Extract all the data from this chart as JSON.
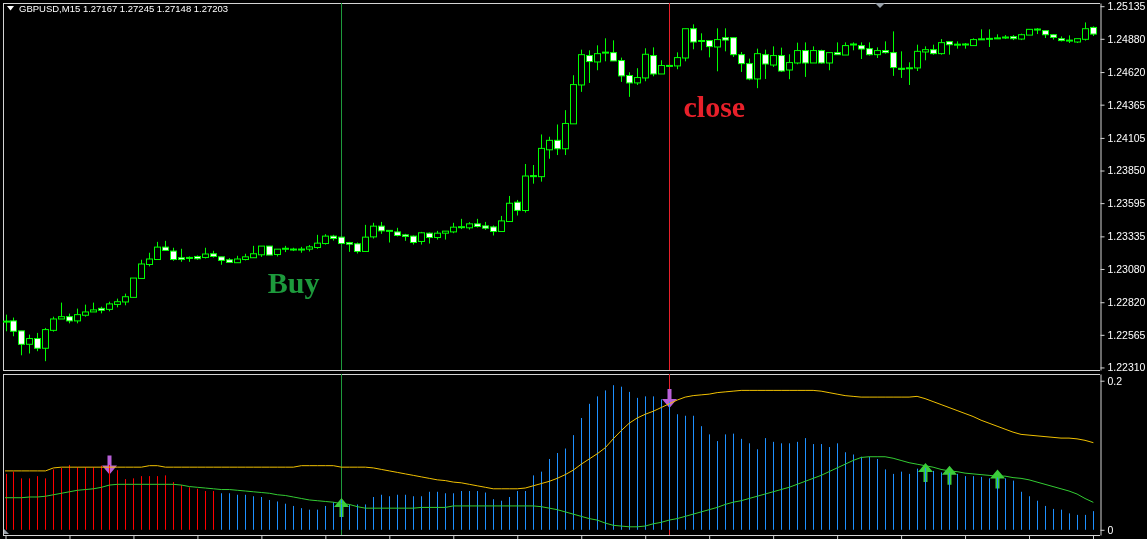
{
  "chart_data": [
    {
      "type": "candlestick",
      "title": "GBPUSD,M15 1.27167 1.27245 1.27148 1.27203",
      "tick_labels": "y",
      "annotations": [
        "Buy",
        "close"
      ],
      "categories": [
        null,
        null,
        null,
        null,
        null,
        null,
        null,
        null,
        null,
        null,
        null,
        null,
        null,
        null,
        null,
        null,
        null,
        null,
        null,
        null,
        null,
        null,
        null,
        null,
        null,
        null,
        null,
        null,
        null,
        null,
        null,
        null,
        null,
        null,
        null,
        null,
        null,
        null,
        null,
        null,
        null,
        null,
        null,
        null,
        null,
        null,
        null,
        null,
        null,
        null,
        null,
        null,
        null,
        null,
        null,
        null,
        null,
        null,
        null,
        null,
        null,
        null,
        null,
        null,
        null,
        null,
        null,
        null,
        null,
        null,
        null,
        null,
        null,
        null,
        null,
        null,
        null,
        null,
        null,
        null,
        null,
        null,
        null,
        null,
        null,
        null,
        null,
        null,
        null,
        null,
        null,
        null,
        null,
        null,
        null,
        null,
        null,
        null,
        null,
        null,
        null,
        null,
        null,
        null,
        null,
        null,
        null,
        null,
        null,
        null,
        null,
        null,
        null,
        null,
        null,
        null,
        null,
        null,
        null,
        null,
        null,
        null,
        null,
        null,
        null,
        null,
        null,
        null,
        null,
        null,
        null,
        null,
        null,
        null,
        null,
        null,
        null
      ],
      "ohlc": [
        [
          1.22665,
          1.22723,
          1.22593,
          1.22672
        ],
        [
          1.22674,
          1.227,
          1.22554,
          1.22593
        ],
        [
          1.22596,
          1.22596,
          1.22405,
          1.22491
        ],
        [
          1.22491,
          1.22567,
          1.22419,
          1.22536
        ],
        [
          1.22536,
          1.2258,
          1.22437,
          1.2246
        ],
        [
          1.2246,
          1.22619,
          1.22359,
          1.22606
        ],
        [
          1.226,
          1.22707,
          1.2259,
          1.22689
        ],
        [
          1.22689,
          1.22817,
          1.22689,
          1.22707
        ],
        [
          1.22707,
          1.22731,
          1.22655,
          1.22674
        ],
        [
          1.22674,
          1.2277,
          1.22655,
          1.22723
        ],
        [
          1.22718,
          1.22801,
          1.22707,
          1.22744
        ],
        [
          1.22744,
          1.22817,
          1.22744,
          1.2276
        ],
        [
          1.22772,
          1.22785,
          1.22733,
          1.22757
        ],
        [
          1.22764,
          1.22824,
          1.22749,
          1.22807
        ],
        [
          1.22803,
          1.22848,
          1.2278,
          1.22824
        ],
        [
          1.22822,
          1.22887,
          1.22796,
          1.22863
        ],
        [
          1.22858,
          1.23009,
          1.22858,
          1.23009
        ],
        [
          1.23006,
          1.23152,
          1.23006,
          1.23119
        ],
        [
          1.23115,
          1.23207,
          1.231,
          1.23158
        ],
        [
          1.23154,
          1.23292,
          1.23154,
          1.23251
        ],
        [
          1.23251,
          1.233,
          1.23225,
          1.23225
        ],
        [
          1.2322,
          1.23246,
          1.23144,
          1.23154
        ],
        [
          1.23168,
          1.23238,
          1.23136,
          1.23154
        ],
        [
          1.23168,
          1.23178,
          1.23136,
          1.23165
        ],
        [
          1.23178,
          1.23186,
          1.23152,
          1.2316
        ],
        [
          1.2317,
          1.23246,
          1.23162,
          1.23197
        ],
        [
          1.23199,
          1.23222,
          1.2317,
          1.23178
        ],
        [
          1.23175,
          1.23175,
          1.23113,
          1.23147
        ],
        [
          1.23152,
          1.23165,
          1.23131,
          1.23131
        ],
        [
          1.23129,
          1.23183,
          1.23129,
          1.23158
        ],
        [
          1.23154,
          1.23199,
          1.23147,
          1.23175
        ],
        [
          1.23168,
          1.23261,
          1.23168,
          1.23199
        ],
        [
          1.23191,
          1.23259,
          1.23175,
          1.23259
        ],
        [
          1.23259,
          1.23259,
          1.23189,
          1.23189
        ],
        [
          1.23193,
          1.23235,
          1.23178,
          1.23235
        ],
        [
          1.23238,
          1.23261,
          1.23212,
          1.23238
        ],
        [
          1.23232,
          1.23246,
          1.2322,
          1.23232
        ],
        [
          1.23232,
          1.23253,
          1.23207,
          1.23232
        ],
        [
          1.23235,
          1.23267,
          1.23217,
          1.23253
        ],
        [
          1.23248,
          1.23347,
          1.23238,
          1.23282
        ],
        [
          1.23279,
          1.23352,
          1.23271,
          1.23337
        ],
        [
          1.23337,
          1.23347,
          1.23302,
          1.23318
        ],
        [
          1.23329,
          1.23329,
          1.23279,
          1.23279
        ],
        [
          1.23287,
          1.23292,
          1.23214,
          1.23274
        ],
        [
          1.23277,
          1.23287,
          1.23201,
          1.23217
        ],
        [
          1.23217,
          1.23425,
          1.23217,
          1.23329
        ],
        [
          1.23331,
          1.23441,
          1.23318,
          1.23415
        ],
        [
          1.23415,
          1.23448,
          1.23355,
          1.23378
        ],
        [
          1.23378,
          1.23384,
          1.23287,
          1.23378
        ],
        [
          1.2337,
          1.23402,
          1.23334,
          1.23342
        ],
        [
          1.23347,
          1.23355,
          1.233,
          1.23334
        ],
        [
          1.23337,
          1.23342,
          1.23271,
          1.23287
        ],
        [
          1.23295,
          1.2337,
          1.23271,
          1.23363
        ],
        [
          1.2336,
          1.23365,
          1.23279,
          1.23326
        ],
        [
          1.23326,
          1.23378,
          1.2331,
          1.2336
        ],
        [
          1.2336,
          1.23376,
          1.2331,
          1.23376
        ],
        [
          1.2337,
          1.23441,
          1.2336,
          1.23407
        ],
        [
          1.23407,
          1.23472,
          1.23392,
          1.23407
        ],
        [
          1.23402,
          1.23446,
          1.23388,
          1.23433
        ],
        [
          1.23433,
          1.23472,
          1.23404,
          1.23412
        ],
        [
          1.23417,
          1.23448,
          1.23386,
          1.23399
        ],
        [
          1.23409,
          1.2342,
          1.23342,
          1.23373
        ],
        [
          1.23373,
          1.23495,
          1.23373,
          1.23456
        ],
        [
          1.23451,
          1.23651,
          1.23451,
          1.23594
        ],
        [
          1.23602,
          1.2362,
          1.23498,
          1.23538
        ],
        [
          1.23537,
          1.23901,
          1.23521,
          1.23807
        ],
        [
          1.23807,
          1.23893,
          1.23747,
          1.23805
        ],
        [
          1.23802,
          1.24132,
          1.23763,
          1.24023
        ],
        [
          1.24012,
          1.24114,
          1.23942,
          1.24086
        ],
        [
          1.24086,
          1.2421,
          1.23971,
          1.2402
        ],
        [
          1.2402,
          1.24322,
          1.23971,
          1.24218
        ],
        [
          1.24215,
          1.24595,
          1.24215,
          1.24522
        ],
        [
          1.24519,
          1.24795,
          1.24465,
          1.24756
        ],
        [
          1.24749,
          1.2479,
          1.24535,
          1.24702
        ],
        [
          1.24699,
          1.24829,
          1.24634,
          1.24764
        ],
        [
          1.24772,
          1.24884,
          1.24704,
          1.24772
        ],
        [
          1.24772,
          1.24868,
          1.24707,
          1.24707
        ],
        [
          1.2471,
          1.24733,
          1.24543,
          1.2459
        ],
        [
          1.24593,
          1.24618,
          1.24426,
          1.24535
        ],
        [
          1.24535,
          1.2465,
          1.24519,
          1.24577
        ],
        [
          1.24574,
          1.24806,
          1.24548,
          1.24759
        ],
        [
          1.24749,
          1.24813,
          1.24587,
          1.24605
        ],
        [
          1.24605,
          1.24712,
          1.24605,
          1.24671
        ],
        [
          1.24668,
          1.24675,
          1.2466,
          1.24668
        ],
        [
          1.24668,
          1.24774,
          1.24642,
          1.24733
        ],
        [
          1.2473,
          1.24959,
          1.24704,
          1.24959
        ],
        [
          1.24959,
          1.24993,
          1.24798,
          1.24855
        ],
        [
          1.24863,
          1.24923,
          1.2479,
          1.24863
        ],
        [
          1.24866,
          1.24866,
          1.24735,
          1.24819
        ],
        [
          1.24816,
          1.24962,
          1.24626,
          1.24874
        ],
        [
          1.24889,
          1.24962,
          1.24782,
          1.2487
        ],
        [
          1.24889,
          1.24889,
          1.24738,
          1.24756
        ],
        [
          1.24756,
          1.24777,
          1.24621,
          1.24686
        ],
        [
          1.24686,
          1.24725,
          1.24556,
          1.24566
        ],
        [
          1.24566,
          1.24803,
          1.24494,
          1.24764
        ],
        [
          1.24756,
          1.24795,
          1.24566,
          1.24683
        ],
        [
          1.24675,
          1.24821,
          1.2466,
          1.24749
        ],
        [
          1.24749,
          1.24811,
          1.24621,
          1.24628
        ],
        [
          1.24636,
          1.24759,
          1.24564,
          1.24694
        ],
        [
          1.24691,
          1.2485,
          1.24681,
          1.24788
        ],
        [
          1.24788,
          1.24852,
          1.24582,
          1.24691
        ],
        [
          1.24691,
          1.24821,
          1.24691,
          1.24788
        ],
        [
          1.24788,
          1.24795,
          1.24686,
          1.24691
        ],
        [
          1.24691,
          1.24772,
          1.24634,
          1.24772
        ],
        [
          1.24772,
          1.24852,
          1.24756,
          1.24756
        ],
        [
          1.24753,
          1.24852,
          1.24753,
          1.24827
        ],
        [
          1.24834,
          1.24852,
          1.2479,
          1.24837
        ],
        [
          1.24827,
          1.24852,
          1.24722,
          1.248
        ],
        [
          1.24803,
          1.24852,
          1.24749,
          1.24756
        ],
        [
          1.24756,
          1.24813,
          1.2473,
          1.24788
        ],
        [
          1.24788,
          1.2486,
          1.24764,
          1.24772
        ],
        [
          1.24772,
          1.24938,
          1.2459,
          1.24655
        ],
        [
          1.24647,
          1.24782,
          1.24574,
          1.24644
        ],
        [
          1.24647,
          1.24696,
          1.24519,
          1.24652
        ],
        [
          1.24652,
          1.24834,
          1.24628,
          1.24782
        ],
        [
          1.24777,
          1.24821,
          1.24712,
          1.24795
        ],
        [
          1.24795,
          1.24834,
          1.24756,
          1.24764
        ],
        [
          1.24764,
          1.24878,
          1.24756,
          1.2485
        ],
        [
          1.24858,
          1.24858,
          1.24756,
          1.24834
        ],
        [
          1.24834,
          1.2486,
          1.24803,
          1.24834
        ],
        [
          1.24834,
          1.24847,
          1.24803,
          1.24837
        ],
        [
          1.24827,
          1.24884,
          1.24827,
          1.24874
        ],
        [
          1.24874,
          1.24954,
          1.24874,
          1.24878
        ],
        [
          1.24878,
          1.24954,
          1.24816,
          1.24881
        ],
        [
          1.24881,
          1.24915,
          1.24878,
          1.24886
        ],
        [
          1.24886,
          1.24909,
          1.24878,
          1.24894
        ],
        [
          1.24897,
          1.24909,
          1.2487,
          1.24881
        ],
        [
          1.24878,
          1.2492,
          1.2487,
          1.24912
        ],
        [
          1.24909,
          1.24954,
          1.24909,
          1.24954
        ],
        [
          1.24954,
          1.24964,
          1.24917,
          1.24951
        ],
        [
          1.24944,
          1.24944,
          1.24886,
          1.24912
        ],
        [
          1.24912,
          1.24917,
          1.24874,
          1.24891
        ],
        [
          1.24881,
          1.24899,
          1.2486,
          1.24866
        ],
        [
          1.24866,
          1.24907,
          1.24847,
          1.24866
        ],
        [
          1.24855,
          1.24881,
          1.24847,
          1.24881
        ],
        [
          1.24876,
          1.25008,
          1.24866,
          1.24959
        ],
        [
          1.24969,
          1.24977,
          1.24902,
          1.24917
        ]
      ],
      "color": "#00ff00",
      "colors": [
        "#00ff00",
        "#ffffff",
        "#ffffff",
        "#00ff00",
        "#ffffff",
        "#00ff00",
        "#00ff00",
        "#00ff00",
        "#ffffff",
        "#00ff00",
        "#00ff00",
        "#00ff00",
        "#ffffff",
        "#00ff00",
        "#00ff00",
        "#00ff00",
        "#00ff00",
        "#00ff00",
        "#00ff00",
        "#00ff00",
        "#ffffff",
        "#ffffff",
        "#ffffff",
        "#ffffff",
        "#ffffff",
        "#00ff00",
        "#ffffff",
        "#ffffff",
        "#ffffff",
        "#00ff00",
        "#00ff00",
        "#00ff00",
        "#00ff00",
        "#ffffff",
        "#00ff00",
        "#00ff00",
        "#00ff00",
        "#00ff00",
        "#00ff00",
        "#00ff00",
        "#00ff00",
        "#ffffff",
        "#ffffff",
        "#ffffff",
        "#ffffff",
        "#00ff00",
        "#00ff00",
        "#ffffff",
        "#00ff00",
        "#ffffff",
        "#ffffff",
        "#ffffff",
        "#00ff00",
        "#ffffff",
        "#00ff00",
        "#00ff00",
        "#00ff00",
        "#00ff00",
        "#00ff00",
        "#ffffff",
        "#ffffff",
        "#ffffff",
        "#00ff00",
        "#00ff00",
        "#ffffff",
        "#00ff00",
        "#ffffff",
        "#00ff00",
        "#00ff00",
        "#ffffff",
        "#00ff00",
        "#00ff00",
        "#00ff00",
        "#ffffff",
        "#00ff00",
        "#00ff00",
        "#ffffff",
        "#ffffff",
        "#ffffff",
        "#00ff00",
        "#00ff00",
        "#ffffff",
        "#00ff00",
        "#00ff00",
        "#00ff00",
        "#00ff00",
        "#ffffff",
        "#00ff00",
        "#ffffff",
        "#00ff00",
        "#ffffff",
        "#ffffff",
        "#ffffff",
        "#ffffff",
        "#00ff00",
        "#ffffff",
        "#00ff00",
        "#ffffff",
        "#00ff00",
        "#00ff00",
        "#ffffff",
        "#00ff00",
        "#ffffff",
        "#00ff00",
        "#ffffff",
        "#00ff00",
        "#00ff00",
        "#ffffff",
        "#ffffff",
        "#00ff00",
        "#ffffff",
        "#ffffff",
        "#ffffff",
        "#00ff00",
        "#00ff00",
        "#00ff00",
        "#ffffff",
        "#00ff00",
        "#ffffff",
        "#00ff00",
        "#00ff00",
        "#00ff00",
        "#00ff00",
        "#00ff00",
        "#00ff00",
        "#00ff00",
        "#ffffff",
        "#00ff00",
        "#00ff00",
        "#ffffff",
        "#ffffff",
        "#ffffff",
        "#ffffff",
        "#00ff00",
        "#00ff00",
        "#00ff00",
        "#ffffff"
      ],
      "ylim": [
        1.2229,
        1.2516
      ],
      "yticks": [
        1.25135,
        {
          "value": 1.2488,
          "label": "1.24880"
        },
        {
          "value": 1.2462,
          "label": "1.24620"
        },
        1.24365,
        1.24105,
        {
          "value": 1.2385,
          "label": "1.23850"
        },
        1.23595,
        1.23335,
        {
          "value": 1.2308,
          "label": "1.23080"
        },
        {
          "value": 1.2282,
          "label": "1.22820"
        },
        1.22565,
        {
          "value": 1.2231,
          "label": "1.22310"
        }
      ]
    },
    {
      "type": "bar",
      "tick_labels": "y",
      "categories": [
        null,
        null,
        null,
        null,
        null,
        null,
        null,
        null,
        null,
        null,
        null,
        null,
        null,
        null,
        null,
        null,
        null,
        null,
        null,
        null,
        null,
        null,
        null,
        null,
        null,
        null,
        null,
        null,
        null,
        null,
        null,
        null,
        null,
        null,
        null,
        null,
        null,
        null,
        null,
        null,
        null,
        null,
        null,
        null,
        null,
        null,
        null,
        null,
        null,
        null,
        null,
        null,
        null,
        null,
        null,
        null,
        null,
        null,
        null,
        null,
        null,
        null,
        null,
        null,
        null,
        null,
        null,
        null,
        null,
        null,
        null,
        null,
        null,
        null,
        null,
        null,
        null,
        null,
        null,
        null,
        null,
        null,
        null,
        null,
        null,
        null,
        null,
        null,
        null,
        null,
        null,
        null,
        null,
        null,
        null,
        null,
        null,
        null,
        null,
        null,
        null,
        null,
        null,
        null,
        null,
        null,
        null,
        null,
        null,
        null,
        null,
        null,
        null,
        null,
        null,
        null,
        null,
        null,
        null,
        null,
        null,
        null,
        null,
        null,
        null,
        null,
        null,
        null,
        null,
        null,
        null,
        null,
        null,
        null,
        null,
        null,
        null
      ],
      "series": [
        {
          "colors": [
            "#ff0000",
            "#ff0000",
            "#ff0000",
            "#ff0000",
            "#ff0000",
            "#ff0000",
            "#ff0000",
            "#ff0000",
            "#ff0000",
            "#ff0000",
            "#ff0000",
            "#ff0000",
            "#ff0000",
            "#ff0000",
            "#ff0000",
            "#ff0000",
            "#ff0000",
            "#ff0000",
            "#ff0000",
            "#ff0000",
            "#ff0000",
            "#ff0000",
            "#ff0000",
            "#ff0000",
            "#ff0000",
            "#ff0000",
            "#ff0000",
            "#1e90ff",
            "#1e90ff",
            "#1e90ff",
            "#1e90ff",
            "#1e90ff",
            "#1e90ff",
            "#1e90ff",
            "#1e90ff",
            "#1e90ff",
            "#1e90ff",
            "#1e90ff",
            "#1e90ff",
            "#1e90ff",
            "#1e90ff",
            "#1e90ff",
            "#1e90ff",
            "#1e90ff",
            "#1e90ff",
            "#1e90ff",
            "#1e90ff",
            "#1e90ff",
            "#1e90ff",
            "#1e90ff",
            "#1e90ff",
            "#1e90ff",
            "#1e90ff",
            "#1e90ff",
            "#1e90ff",
            "#1e90ff",
            "#1e90ff",
            "#1e90ff",
            "#1e90ff",
            "#1e90ff",
            "#1e90ff",
            "#1e90ff",
            "#1e90ff",
            "#1e90ff",
            "#1e90ff",
            "#1e90ff",
            "#1e90ff",
            "#1e90ff",
            "#1e90ff",
            "#1e90ff",
            "#1e90ff",
            "#1e90ff",
            "#1e90ff",
            "#1e90ff",
            "#1e90ff",
            "#1e90ff",
            "#1e90ff",
            "#1e90ff",
            "#1e90ff",
            "#1e90ff",
            "#1e90ff",
            "#1e90ff",
            "#1e90ff",
            "#1e90ff",
            "#1e90ff",
            "#1e90ff",
            "#1e90ff",
            "#1e90ff",
            "#1e90ff",
            "#1e90ff",
            "#1e90ff",
            "#1e90ff",
            "#1e90ff",
            "#1e90ff",
            "#1e90ff",
            "#1e90ff",
            "#1e90ff",
            "#1e90ff",
            "#1e90ff",
            "#1e90ff",
            "#1e90ff",
            "#1e90ff",
            "#1e90ff",
            "#1e90ff",
            "#1e90ff",
            "#1e90ff",
            "#1e90ff",
            "#1e90ff",
            "#1e90ff",
            "#1e90ff",
            "#1e90ff",
            "#1e90ff",
            "#1e90ff",
            "#1e90ff",
            "#1e90ff",
            "#1e90ff",
            "#1e90ff",
            "#1e90ff",
            "#1e90ff",
            "#1e90ff",
            "#1e90ff",
            "#1e90ff",
            "#1e90ff",
            "#1e90ff",
            "#1e90ff",
            "#1e90ff",
            "#1e90ff",
            "#1e90ff",
            "#1e90ff",
            "#1e90ff",
            "#1e90ff",
            "#1e90ff",
            "#1e90ff",
            "#1e90ff",
            "#1e90ff",
            "#1e90ff",
            "#1e90ff"
          ],
          "values": [
            0.075,
            0.078,
            0.069,
            0.069,
            0.072,
            0.069,
            0.081,
            0.083,
            0.087,
            0.084,
            0.084,
            0.084,
            0.086,
            0.087,
            0.08,
            0.068,
            0.069,
            0.072,
            0.072,
            0.072,
            0.073,
            0.064,
            0.06,
            0.057,
            0.055,
            0.052,
            0.052,
            0.049,
            0.049,
            0.047,
            0.047,
            0.045,
            0.044,
            0.04,
            0.038,
            0.035,
            0.032,
            0.029,
            0.027,
            0.027,
            0.032,
            0.037,
            0.04,
            0.034,
            0.034,
            0.034,
            0.044,
            0.047,
            0.045,
            0.047,
            0.047,
            0.045,
            0.045,
            0.051,
            0.051,
            0.049,
            0.049,
            0.052,
            0.052,
            0.052,
            0.05,
            0.041,
            0.039,
            0.044,
            0.052,
            0.052,
            0.073,
            0.078,
            0.095,
            0.103,
            0.109,
            0.127,
            0.15,
            0.169,
            0.179,
            0.187,
            0.194,
            0.192,
            0.185,
            0.177,
            0.179,
            0.179,
            0.175,
            0.172,
            0.155,
            0.153,
            0.153,
            0.139,
            0.128,
            0.119,
            0.128,
            0.129,
            0.122,
            0.116,
            0.108,
            0.123,
            0.118,
            0.116,
            0.116,
            0.118,
            0.123,
            0.115,
            0.115,
            0.111,
            0.116,
            0.104,
            0.101,
            0.098,
            0.098,
            0.095,
            0.081,
            0.075,
            0.078,
            0.075,
            0.082,
            0.083,
            0.079,
            0.077,
            0.076,
            0.075,
            0.072,
            0.072,
            0.071,
            0.069,
            0.07,
            0.069,
            0.066,
            0.051,
            0.045,
            0.039,
            0.032,
            0.028,
            0.027,
            0.022,
            0.02,
            0.02,
            0.025
          ]
        },
        {
          "type": "line",
          "color": "#f0c000",
          "values": [
            0.079,
            0.079,
            0.079,
            0.079,
            0.079,
            0.079,
            0.083,
            0.084,
            0.084,
            0.084,
            0.084,
            0.084,
            0.084,
            0.084,
            0.084,
            0.084,
            0.084,
            0.084,
            0.086,
            0.086,
            0.084,
            0.084,
            0.084,
            0.084,
            0.084,
            0.084,
            0.084,
            0.084,
            0.084,
            0.084,
            0.084,
            0.084,
            0.084,
            0.084,
            0.084,
            0.084,
            0.084,
            0.086,
            0.086,
            0.086,
            0.086,
            0.086,
            0.084,
            0.084,
            0.084,
            0.084,
            0.083,
            0.081,
            0.079,
            0.077,
            0.075,
            0.073,
            0.071,
            0.069,
            0.067,
            0.066,
            0.064,
            0.063,
            0.061,
            0.059,
            0.057,
            0.055,
            0.055,
            0.055,
            0.055,
            0.056,
            0.059,
            0.062,
            0.065,
            0.069,
            0.074,
            0.08,
            0.088,
            0.095,
            0.102,
            0.11,
            0.122,
            0.133,
            0.143,
            0.15,
            0.155,
            0.159,
            0.164,
            0.169,
            0.174,
            0.178,
            0.18,
            0.181,
            0.182,
            0.184,
            0.185,
            0.186,
            0.187,
            0.187,
            0.187,
            0.187,
            0.187,
            0.187,
            0.187,
            0.187,
            0.187,
            0.187,
            0.186,
            0.184,
            0.182,
            0.18,
            0.179,
            0.178,
            0.178,
            0.178,
            0.178,
            0.178,
            0.178,
            0.178,
            0.179,
            0.176,
            0.172,
            0.168,
            0.164,
            0.16,
            0.156,
            0.152,
            0.147,
            0.143,
            0.139,
            0.135,
            0.131,
            0.128,
            0.127,
            0.126,
            0.125,
            0.124,
            0.123,
            0.123,
            0.122,
            0.12,
            0.117
          ]
        },
        {
          "type": "line",
          "color": "#33cc33",
          "values": [
            0.043,
            0.043,
            0.043,
            0.044,
            0.044,
            0.045,
            0.047,
            0.049,
            0.051,
            0.053,
            0.054,
            0.055,
            0.057,
            0.06,
            0.061,
            0.061,
            0.061,
            0.061,
            0.061,
            0.061,
            0.061,
            0.061,
            0.06,
            0.058,
            0.057,
            0.056,
            0.055,
            0.054,
            0.054,
            0.053,
            0.052,
            0.051,
            0.05,
            0.049,
            0.047,
            0.046,
            0.044,
            0.042,
            0.04,
            0.039,
            0.038,
            0.037,
            0.035,
            0.034,
            0.031,
            0.029,
            0.029,
            0.029,
            0.029,
            0.029,
            0.029,
            0.029,
            0.03,
            0.03,
            0.03,
            0.03,
            0.032,
            0.032,
            0.032,
            0.032,
            0.032,
            0.032,
            0.032,
            0.032,
            0.032,
            0.032,
            0.032,
            0.031,
            0.029,
            0.027,
            0.024,
            0.021,
            0.018,
            0.015,
            0.013,
            0.009,
            0.006,
            0.005,
            0.004,
            0.004,
            0.005,
            0.008,
            0.01,
            0.013,
            0.015,
            0.018,
            0.021,
            0.024,
            0.027,
            0.03,
            0.034,
            0.037,
            0.039,
            0.042,
            0.045,
            0.048,
            0.051,
            0.054,
            0.057,
            0.061,
            0.065,
            0.069,
            0.073,
            0.078,
            0.083,
            0.088,
            0.093,
            0.097,
            0.098,
            0.098,
            0.098,
            0.096,
            0.093,
            0.09,
            0.088,
            0.086,
            0.084,
            0.081,
            0.079,
            0.078,
            0.076,
            0.075,
            0.074,
            0.073,
            0.072,
            0.072,
            0.07,
            0.069,
            0.067,
            0.064,
            0.061,
            0.058,
            0.055,
            0.052,
            0.048,
            0.042,
            0.037
          ]
        },
        {
          "type": "scatter",
          "color": "#b860d8",
          "values": [
            null,
            null,
            null,
            null,
            null,
            null,
            null,
            null,
            null,
            null,
            null,
            null,
            null,
            0.087,
            null,
            null,
            null,
            null,
            null,
            null,
            null,
            null,
            null,
            null,
            null,
            null,
            null,
            null,
            null,
            null,
            null,
            null,
            null,
            null,
            null,
            null,
            null,
            null,
            null,
            null,
            null,
            null,
            null,
            null,
            null,
            null,
            null,
            null,
            null,
            null,
            null,
            null,
            null,
            null,
            null,
            null,
            null,
            null,
            null,
            null,
            null,
            null,
            null,
            null,
            null,
            null,
            null,
            null,
            null,
            null,
            null,
            null,
            null,
            null,
            null,
            null,
            null,
            null,
            null,
            null,
            null,
            null,
            null,
            0.176,
            null,
            null,
            null,
            null,
            null,
            null,
            null,
            null,
            null,
            null,
            null,
            null,
            null,
            null,
            null,
            null,
            null,
            null,
            null,
            null,
            null,
            null,
            null,
            null,
            null,
            null,
            null,
            null,
            null,
            null,
            null,
            null,
            null,
            null,
            null,
            null,
            null,
            null,
            null,
            null,
            null,
            null,
            null,
            null,
            null,
            null,
            null,
            null,
            null,
            null,
            null,
            null,
            null
          ]
        },
        {
          "type": "scatter",
          "color": "#3ccc3c",
          "values": [
            null,
            null,
            null,
            null,
            null,
            null,
            null,
            null,
            null,
            null,
            null,
            null,
            null,
            null,
            null,
            null,
            null,
            null,
            null,
            null,
            null,
            null,
            null,
            null,
            null,
            null,
            null,
            null,
            null,
            null,
            null,
            null,
            null,
            null,
            null,
            null,
            null,
            null,
            null,
            null,
            null,
            null,
            0.03,
            null,
            null,
            null,
            null,
            null,
            null,
            null,
            null,
            null,
            null,
            null,
            null,
            null,
            null,
            null,
            null,
            null,
            null,
            null,
            null,
            null,
            null,
            null,
            null,
            null,
            null,
            null,
            null,
            null,
            null,
            null,
            null,
            null,
            null,
            null,
            null,
            null,
            null,
            null,
            null,
            null,
            null,
            null,
            null,
            null,
            null,
            null,
            null,
            null,
            null,
            null,
            null,
            null,
            null,
            null,
            null,
            null,
            null,
            null,
            null,
            null,
            null,
            null,
            null,
            null,
            null,
            null,
            null,
            null,
            null,
            null,
            null,
            0.077,
            null,
            null,
            0.073,
            null,
            null,
            null,
            null,
            null,
            0.068,
            null,
            null,
            null,
            null,
            null,
            null,
            null,
            null,
            null,
            null,
            null,
            null
          ]
        }
      ],
      "ylim": [
        -0.007,
        0.209
      ],
      "yticks": [
        0,
        0.2
      ]
    }
  ]
}
